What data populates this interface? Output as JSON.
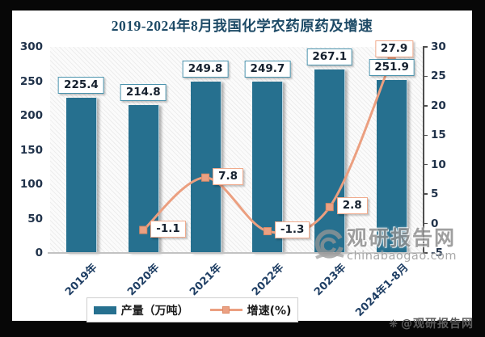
{
  "title": "2019-2024年8月我国化学农药原药及增速",
  "legend": {
    "bar_label": "产量（万吨）",
    "line_label": "增速(%)"
  },
  "watermark": {
    "brand": "观研报告网",
    "domain": "chinabaogao.com",
    "credit": "@观研报告网",
    "credit_icon": "❋"
  },
  "colors": {
    "bar": "#26708f",
    "line": "#eb9f80",
    "marker_fill": "#eba183",
    "marker_stroke": "#dd8a66",
    "bar_label_border": "#4b93ad",
    "line_label_border": "#f0ab8d",
    "title_text": "#1d4a66",
    "tick_text": "#20324a"
  },
  "chart_data": {
    "type": "bar",
    "subtype": "bar-line combo, dual axis",
    "title": "2019-2024年8月我国化学农药原药及增速",
    "categories": [
      "2019年",
      "2020年",
      "2021年",
      "2022年",
      "2023年",
      "2024年1-8月"
    ],
    "series": [
      {
        "name": "产量（万吨）",
        "type": "bar",
        "axis": "left",
        "values": [
          225.4,
          214.8,
          249.8,
          249.7,
          267.1,
          251.9
        ]
      },
      {
        "name": "增速(%)",
        "type": "line",
        "axis": "right",
        "values": [
          null,
          -1.1,
          7.8,
          -1.3,
          2.8,
          27.9
        ]
      }
    ],
    "left_axis": {
      "min": 0,
      "max": 300,
      "ticks": [
        300,
        250,
        200,
        150,
        100,
        50,
        0
      ]
    },
    "right_axis": {
      "min": -5,
      "max": 30,
      "ticks": [
        30,
        25,
        20,
        15,
        10,
        5,
        0,
        -5
      ]
    },
    "grid": false,
    "legend_position": "bottom",
    "plot_background": "diagonal hatch"
  }
}
